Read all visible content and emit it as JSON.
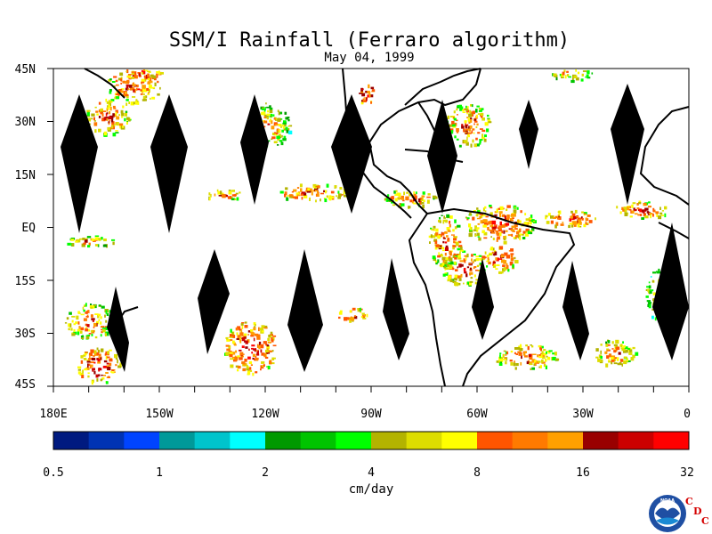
{
  "map": {
    "title": "SSM/I Rainfall (Ferraro algorithm)",
    "date": "May 04, 1999",
    "lat_labels": [
      "45N",
      "30N",
      "15N",
      "EQ",
      "15S",
      "30S",
      "45S"
    ],
    "lon_labels": [
      "180E",
      "150W",
      "120W",
      "90W",
      "60W",
      "30W",
      "0"
    ]
  },
  "colorbar": {
    "unit": "cm/day",
    "tick_labels": [
      "0.5",
      "1",
      "2",
      "4",
      "8",
      "16",
      "32"
    ],
    "colors": [
      "#001a80",
      "#0033b3",
      "#0044ff",
      "#009999",
      "#00c4cc",
      "#00ffff",
      "#009900",
      "#00c400",
      "#00ff00",
      "#b3b300",
      "#dddd00",
      "#ffff00",
      "#ff5500",
      "#ff7a00",
      "#ffa000",
      "#990000",
      "#cc0000",
      "#ff0000"
    ]
  },
  "logo": {
    "org_text": "NOAA",
    "cdc_letters": [
      "C",
      "D",
      "C"
    ]
  }
}
